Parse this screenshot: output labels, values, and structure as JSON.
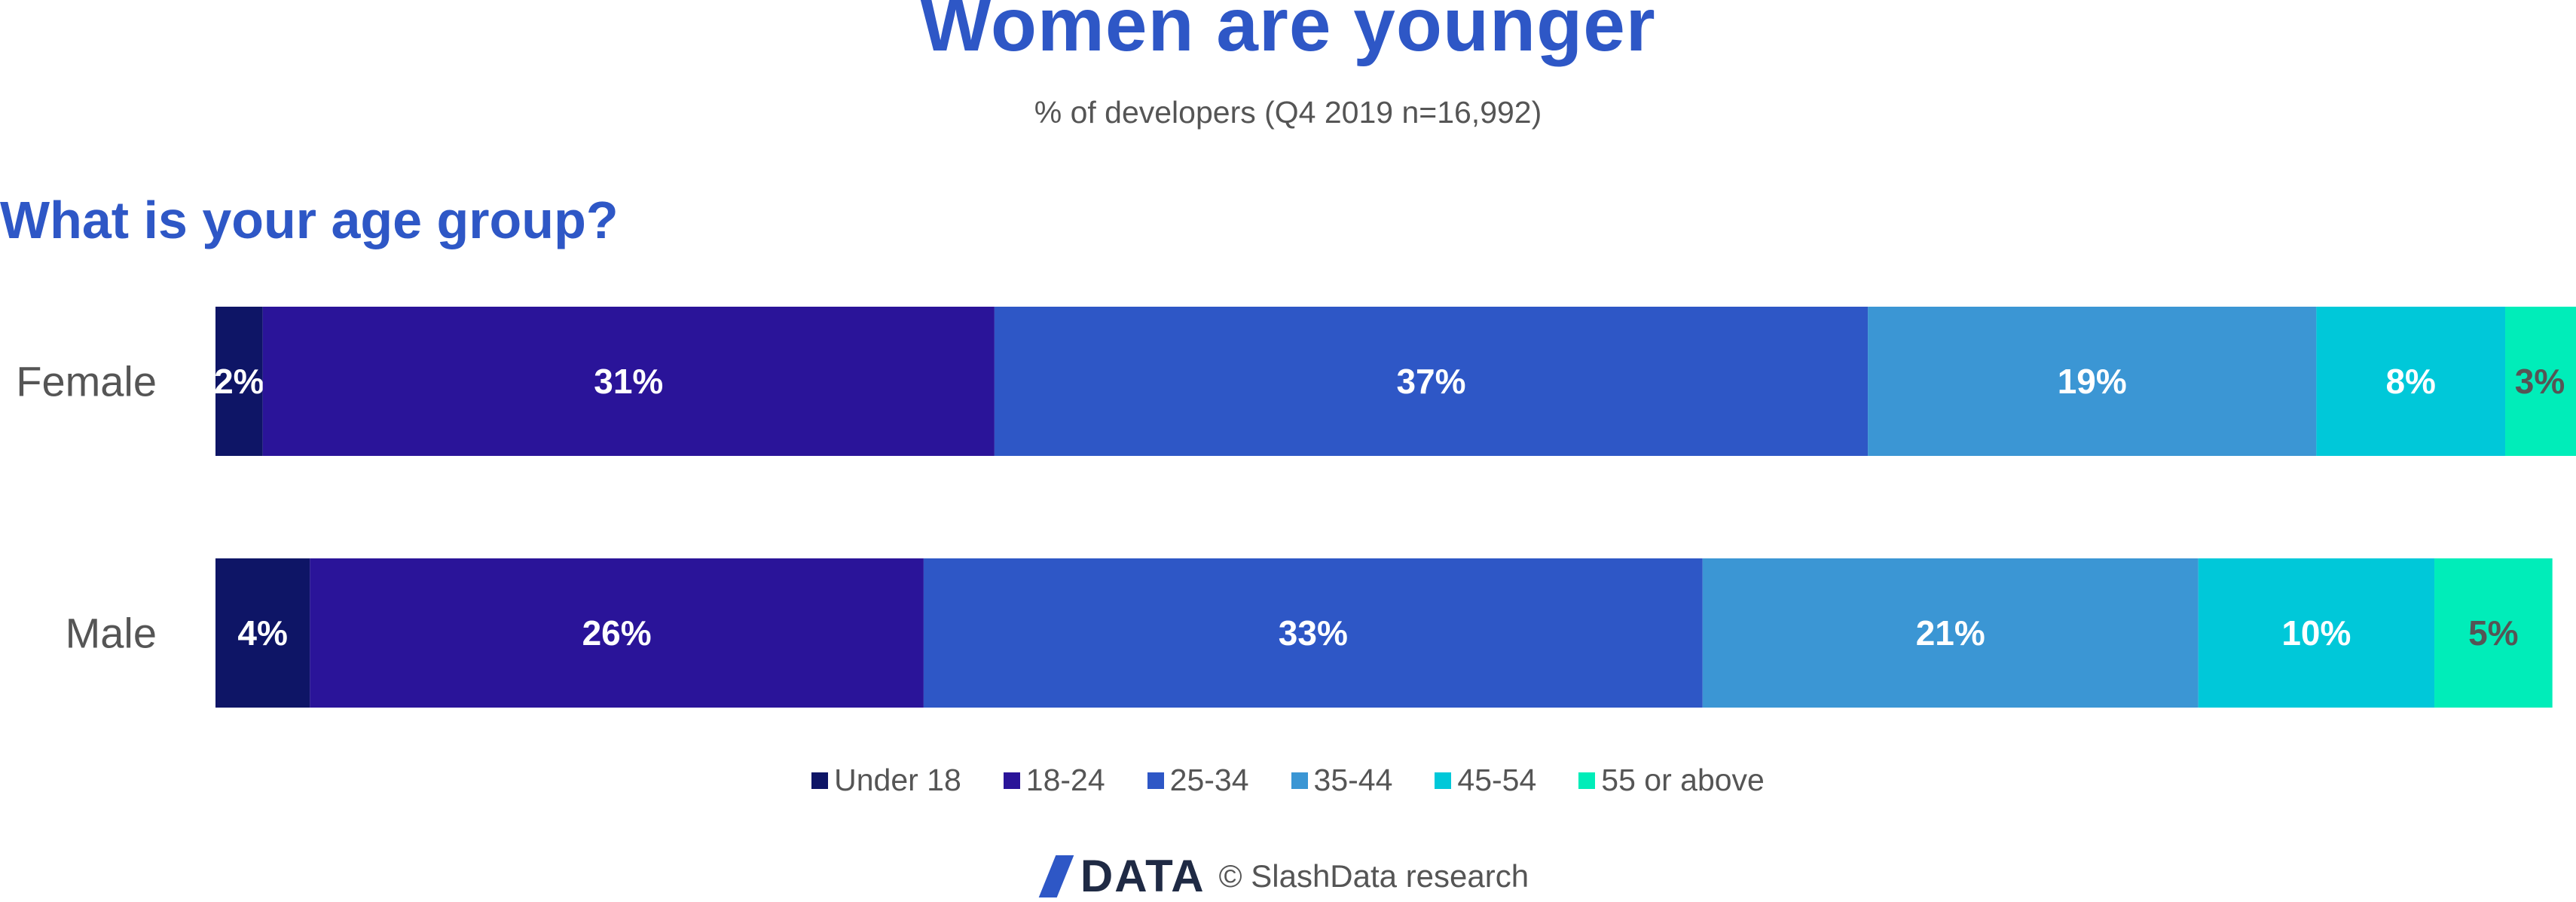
{
  "header": {
    "title": "Women are younger",
    "subtitle": "% of developers (Q4 2019 n=16,992)",
    "question": "What is your age group?"
  },
  "colors": {
    "Under 18": "#0e1566",
    "18-24": "#2a1499",
    "25-34": "#2e57c6",
    "35-44": "#3b96d4",
    "45-54": "#00c8d9",
    "55 or above": "#00edb9",
    "text": "#555555",
    "accent": "#2e57c6"
  },
  "chart_data": {
    "type": "bar",
    "orientation": "horizontal",
    "stacked": true,
    "categories": [
      "Female",
      "Male"
    ],
    "series": [
      {
        "name": "Under 18",
        "values": [
          2,
          4
        ]
      },
      {
        "name": "18-24",
        "values": [
          31,
          26
        ]
      },
      {
        "name": "25-34",
        "values": [
          37,
          33
        ]
      },
      {
        "name": "35-44",
        "values": [
          19,
          21
        ]
      },
      {
        "name": "45-54",
        "values": [
          8,
          10
        ]
      },
      {
        "name": "55 or above",
        "values": [
          3,
          5
        ]
      }
    ],
    "data_labels": [
      [
        "2%",
        "31%",
        "37%",
        "19%",
        "8%",
        "3%"
      ],
      [
        "4%",
        "26%",
        "33%",
        "21%",
        "10%",
        "5%"
      ]
    ],
    "legend_position": "bottom",
    "grid": false
  },
  "legend": {
    "items": [
      "Under 18",
      "18-24",
      "25-34",
      "35-44",
      "45-54",
      "55 or above"
    ]
  },
  "footer": {
    "logo_text": "DATA",
    "credit": "© SlashData research"
  }
}
